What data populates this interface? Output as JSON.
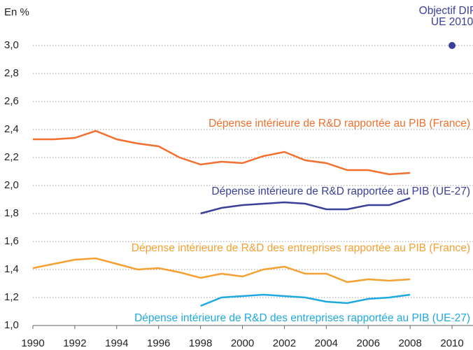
{
  "chart_data": {
    "type": "line",
    "ylabel": "En %",
    "x": [
      1990,
      1991,
      1992,
      1993,
      1994,
      1995,
      1996,
      1997,
      1998,
      1999,
      2000,
      2001,
      2002,
      2003,
      2004,
      2005,
      2006,
      2007,
      2008,
      2009,
      2010
    ],
    "series": [
      {
        "name": "Dépense intérieure de R&D rapportée au PIB (France)",
        "color": "#f26f2e",
        "values": [
          2.33,
          2.33,
          2.34,
          2.39,
          2.33,
          2.3,
          2.28,
          2.2,
          2.15,
          2.17,
          2.16,
          2.21,
          2.24,
          2.18,
          2.16,
          2.11,
          2.11,
          2.08,
          2.09,
          null,
          null
        ]
      },
      {
        "name": "Dépense intérieure de R&D rapportée au PIB (UE-27)",
        "color": "#3a3f97",
        "values": [
          null,
          null,
          null,
          null,
          null,
          null,
          null,
          null,
          1.8,
          1.84,
          1.86,
          1.87,
          1.88,
          1.87,
          1.83,
          1.83,
          1.86,
          1.86,
          1.91,
          null,
          null
        ]
      },
      {
        "name": "Dépense intérieure de R&D des entreprises rapportée au PIB (France)",
        "color": "#f5a031",
        "values": [
          1.41,
          1.44,
          1.47,
          1.48,
          1.44,
          1.4,
          1.41,
          1.38,
          1.34,
          1.37,
          1.35,
          1.4,
          1.42,
          1.37,
          1.37,
          1.31,
          1.33,
          1.32,
          1.33,
          null,
          null
        ]
      },
      {
        "name": "Dépense intérieure de R&D des entreprises rapportée au PIB (UE-27)",
        "color": "#1fa9e1",
        "values": [
          null,
          null,
          null,
          null,
          null,
          null,
          null,
          null,
          1.14,
          1.2,
          1.21,
          1.22,
          1.21,
          1.2,
          1.17,
          1.16,
          1.19,
          1.2,
          1.22,
          null,
          null
        ]
      }
    ],
    "target": {
      "x": 2010,
      "y": 3.0,
      "label": [
        "Objectif DIRD",
        "UE 2010"
      ],
      "color": "#3a3f97"
    },
    "xlim": [
      1990,
      2011
    ],
    "xticks": [
      1990,
      1992,
      1994,
      1996,
      1998,
      2000,
      2002,
      2004,
      2006,
      2008,
      2010
    ],
    "ylim": [
      1.0,
      3.0
    ],
    "yticks": [
      {
        "value": 1.0,
        "label": "1,0"
      },
      {
        "value": 1.2,
        "label": "1,2"
      },
      {
        "value": 1.4,
        "label": "1,4"
      },
      {
        "value": 1.6,
        "label": "1,6"
      },
      {
        "value": 1.8,
        "label": "1,8"
      },
      {
        "value": 2.0,
        "label": "2,0"
      },
      {
        "value": 2.2,
        "label": "2,2"
      },
      {
        "value": 2.4,
        "label": "2,4"
      },
      {
        "value": 2.6,
        "label": "2,6"
      },
      {
        "value": 2.8,
        "label": "2,8"
      },
      {
        "value": 3.0,
        "label": "3,0"
      }
    ],
    "grid": true
  }
}
